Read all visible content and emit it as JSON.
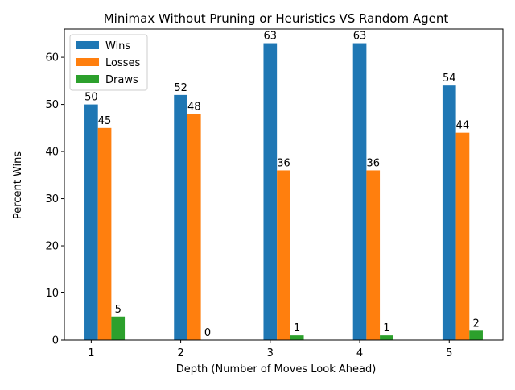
{
  "chart_data": {
    "type": "bar",
    "title": "Minimax Without Pruning or Heuristics VS Random Agent",
    "xlabel": "Depth (Number of Moves Look Ahead)",
    "ylabel": "Percent Wins",
    "categories": [
      "1",
      "2",
      "3",
      "4",
      "5"
    ],
    "series": [
      {
        "name": "Wins",
        "values": [
          50,
          52,
          63,
          63,
          54
        ],
        "color": "#1f77b4"
      },
      {
        "name": "Losses",
        "values": [
          45,
          48,
          36,
          36,
          44
        ],
        "color": "#ff7f0e"
      },
      {
        "name": "Draws",
        "values": [
          5,
          0,
          1,
          1,
          2
        ],
        "color": "#2ca02c"
      }
    ],
    "ylim": [
      0,
      66
    ],
    "yticks": [
      0,
      10,
      20,
      30,
      40,
      50,
      60
    ],
    "grid": false,
    "legend_position": "top-left"
  }
}
